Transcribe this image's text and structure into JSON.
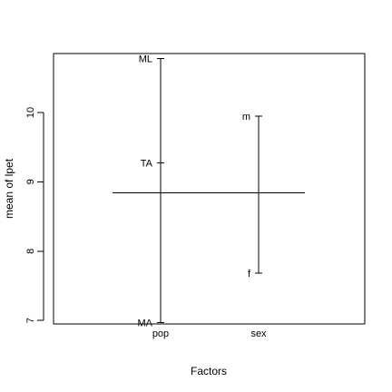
{
  "chart_data": {
    "type": "design-plot",
    "xlabel": "Factors",
    "ylabel": "mean of lpet",
    "ylim": [
      6.95,
      10.85
    ],
    "y_ticks": [
      7,
      8,
      9,
      10
    ],
    "grand_mean": 8.84,
    "factors": [
      {
        "name": "pop",
        "levels": [
          {
            "label": "ML",
            "value": 10.78
          },
          {
            "label": "TA",
            "value": 9.27
          },
          {
            "label": "MA",
            "value": 6.97
          }
        ]
      },
      {
        "name": "sex",
        "levels": [
          {
            "label": "m",
            "value": 9.95
          },
          {
            "label": "f",
            "value": 7.68
          }
        ]
      }
    ]
  }
}
